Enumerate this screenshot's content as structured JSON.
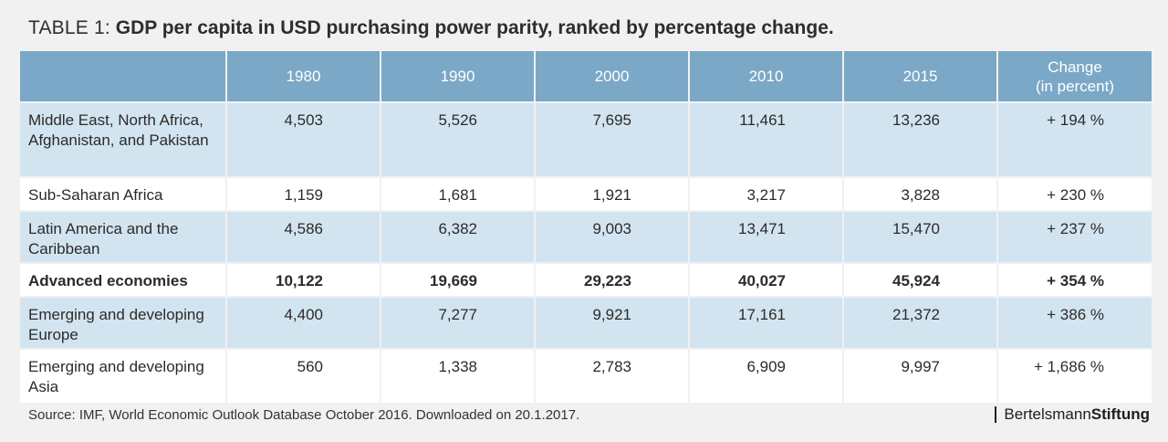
{
  "title": {
    "prefix": "TABLE 1:",
    "main": "GDP per capita in USD purchasing power parity, ranked by percentage change."
  },
  "table": {
    "headers": [
      "",
      "1980",
      "1990",
      "2000",
      "2010",
      "2015"
    ],
    "change_header": {
      "line1": "Change",
      "line2": "(in percent)"
    },
    "rows": [
      {
        "region": "Middle East, North Africa, Afghanistan, and Pakistan",
        "values": [
          "4,503",
          "5,526",
          "7,695",
          "11,461",
          "13,236"
        ],
        "change": "+ 194 %"
      },
      {
        "region": "Sub-Saharan Africa",
        "values": [
          "1,159",
          "1,681",
          "1,921",
          "3,217",
          "3,828"
        ],
        "change": "+ 230 %"
      },
      {
        "region": "Latin America and the Caribbean",
        "values": [
          "4,586",
          "6,382",
          "9,003",
          "13,471",
          "15,470"
        ],
        "change": "+ 237 %"
      },
      {
        "region": "Advanced economies",
        "values": [
          "10,122",
          "19,669",
          "29,223",
          "40,027",
          "45,924"
        ],
        "change": "+ 354 %"
      },
      {
        "region": "Emerging and developing Europe",
        "values": [
          "4,400",
          "7,277",
          "9,921",
          "17,161",
          "21,372"
        ],
        "change": "+ 386 %"
      },
      {
        "region": "Emerging and developing Asia",
        "values": [
          "560",
          "1,338",
          "2,783",
          "6,909",
          "9,997"
        ],
        "change": "+ 1,686 %"
      }
    ]
  },
  "footer": {
    "source": "Source: IMF, World Economic Outlook Database October 2016. Downloaded on 20.1.2017.",
    "brand_part1": "Bertelsmann",
    "brand_part2": "Stiftung"
  },
  "colors": {
    "header_blue": "#7ba8c6",
    "row_light_blue": "#d2e4ef",
    "row_white": "#ffffff",
    "background": "#f1f1f1"
  }
}
